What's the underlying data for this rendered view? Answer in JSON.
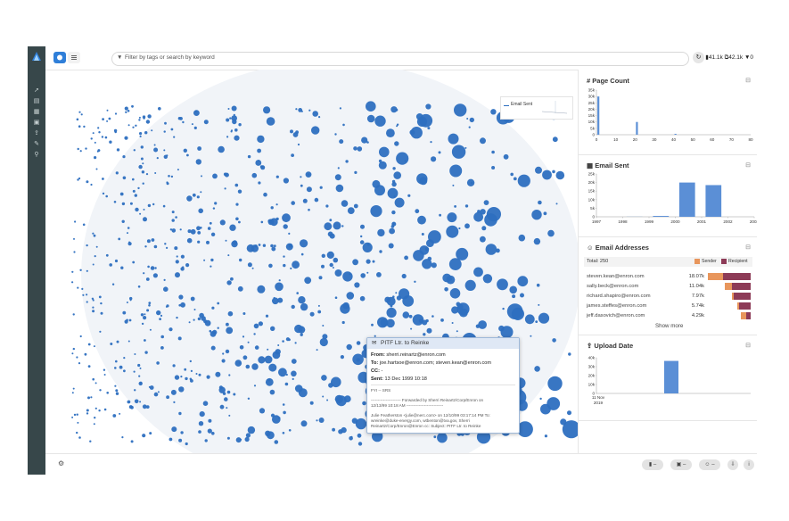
{
  "toolbar": {
    "search_placeholder": "Filter by tags or search by keyword",
    "documents_count": "41.1k",
    "duplicates_count": "42.1k",
    "filter_count": "0"
  },
  "legend": {
    "series_label": "Email Sent"
  },
  "tooltip": {
    "title": "PITF Ltr. to Reinke",
    "from_label": "From:",
    "from": "sherri.reinartz@enron.com",
    "to_label": "To:",
    "to": "joe.hartsoe@enron.com; steven.kean@enron.com",
    "cc_label": "CC:",
    "cc": "-",
    "sent_label": "Sent:",
    "sent": "13 Dec 1999 10:18",
    "body_1": "FYI -- SRS",
    "body_2": "---------------------- Forwarded by Sherri Reinartz/Corp/Enron on",
    "body_3": "12/13/99 10:18 AM ---------------------------",
    "body_4": "Julie Featherston <julie@nerc.com> on 12/10/99 03:17:14 PM To:",
    "body_5": "wreinke@duke-energy.com, wtbenton@tva.gov, Sherri",
    "body_6": "Reinartz/Corp/Enron@Enron cc: Subject: PITF Ltr. to Reinke"
  },
  "page_count": {
    "title": "Page Count",
    "chart_data": {
      "type": "bar",
      "x": [
        1,
        21,
        41
      ],
      "values": [
        30000,
        10000,
        700
      ],
      "xlim": [
        0,
        80
      ],
      "ylim": [
        0,
        35000
      ],
      "x_ticks": [
        "0",
        "10",
        "20",
        "30",
        "40",
        "50",
        "60",
        "70",
        "80"
      ],
      "y_ticks": [
        "35k",
        "30k",
        "25k",
        "20k",
        "15k",
        "10k",
        "5k",
        "0"
      ],
      "color": "#5b8fd6"
    }
  },
  "email_sent": {
    "title": "Email Sent",
    "chart_data": {
      "type": "bar",
      "categories": [
        "1997",
        "1998",
        "1999",
        "2000",
        "2001",
        "2002",
        "2003"
      ],
      "values": [
        0,
        60,
        500,
        20000,
        18500,
        0,
        0
      ],
      "ylim": [
        0,
        25000
      ],
      "y_ticks": [
        "25k",
        "20k",
        "15k",
        "10k",
        "5k",
        "0"
      ],
      "color": "#5b8fd6"
    }
  },
  "email_addresses": {
    "title": "Email Addresses",
    "total": "Total: 250",
    "legend_sender": "Sender",
    "legend_recipient": "Recipient",
    "sender_color": "#e8965c",
    "recipient_color": "#8d3b57",
    "rows": [
      {
        "email": "steven.kean@enron.com",
        "count": "18.07k",
        "sender": 0.35,
        "recipient": 0.65
      },
      {
        "email": "sally.beck@enron.com",
        "count": "11.04k",
        "sender": 0.3,
        "recipient": 0.7
      },
      {
        "email": "richard.shapiro@enron.com",
        "count": "7.97k",
        "sender": 0.12,
        "recipient": 0.88
      },
      {
        "email": "james.steffes@enron.com",
        "count": "5.74k",
        "sender": 0.15,
        "recipient": 0.85
      },
      {
        "email": "jeff.dasovich@enron.com",
        "count": "4.29k",
        "sender": 0.55,
        "recipient": 0.45
      }
    ],
    "show_more": "Show more"
  },
  "upload_date": {
    "title": "Upload Date",
    "chart_data": {
      "type": "bar",
      "categories": [
        "11 Nov 2019"
      ],
      "values": [
        41000
      ],
      "ylim": [
        0,
        45000
      ],
      "y_ticks": [
        "40k",
        "30k",
        "20k",
        "10k",
        "0"
      ],
      "x_tick": "11 Nov",
      "x_tick_year": "2019",
      "color": "#5b8fd6"
    }
  },
  "colors": {
    "accent": "#2f7fd9",
    "sidebar": "#37474a",
    "point": "#2d6fc0"
  }
}
